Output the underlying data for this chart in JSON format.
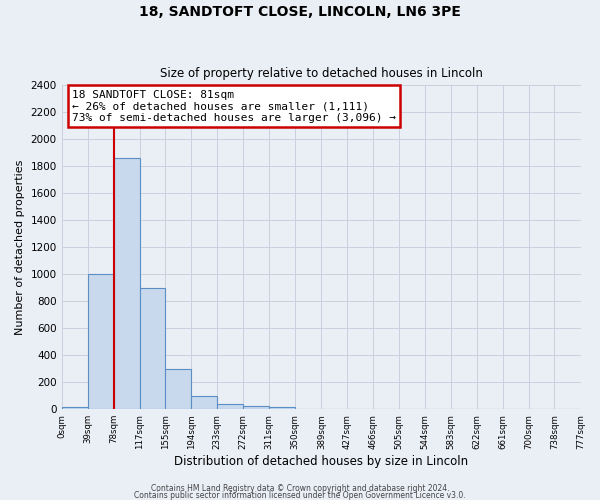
{
  "title": "18, SANDTOFT CLOSE, LINCOLN, LN6 3PE",
  "subtitle": "Size of property relative to detached houses in Lincoln",
  "xlabel": "Distribution of detached houses by size in Lincoln",
  "ylabel": "Number of detached properties",
  "bar_values": [
    20,
    1000,
    1860,
    900,
    300,
    100,
    40,
    25,
    20,
    0,
    0,
    0,
    0,
    0,
    0,
    0,
    0,
    0,
    0,
    0
  ],
  "bin_edges": [
    0,
    39,
    78,
    117,
    155,
    194,
    233,
    272,
    311,
    350,
    389,
    427,
    466,
    505,
    544,
    583,
    622,
    661,
    700,
    738,
    777
  ],
  "tick_labels": [
    "0sqm",
    "39sqm",
    "78sqm",
    "117sqm",
    "155sqm",
    "194sqm",
    "233sqm",
    "272sqm",
    "311sqm",
    "350sqm",
    "389sqm",
    "427sqm",
    "466sqm",
    "505sqm",
    "544sqm",
    "583sqm",
    "622sqm",
    "661sqm",
    "700sqm",
    "738sqm",
    "777sqm"
  ],
  "bar_color": "#c8d9ee",
  "bar_edge_color": "#5b8ec4",
  "red_line_x": 78,
  "ylim": [
    0,
    2400
  ],
  "yticks": [
    0,
    200,
    400,
    600,
    800,
    1000,
    1200,
    1400,
    1600,
    1800,
    2000,
    2200,
    2400
  ],
  "annotation_title": "18 SANDTOFT CLOSE: 81sqm",
  "annotation_line1": "← 26% of detached houses are smaller (1,111)",
  "annotation_line2": "73% of semi-detached houses are larger (3,096) →",
  "annotation_box_color": "#ffffff",
  "annotation_box_edge": "#cc0000",
  "grid_color": "#c8d0de",
  "background_color": "#eaeef5",
  "footer1": "Contains HM Land Registry data © Crown copyright and database right 2024.",
  "footer2": "Contains public sector information licensed under the Open Government Licence v3.0."
}
